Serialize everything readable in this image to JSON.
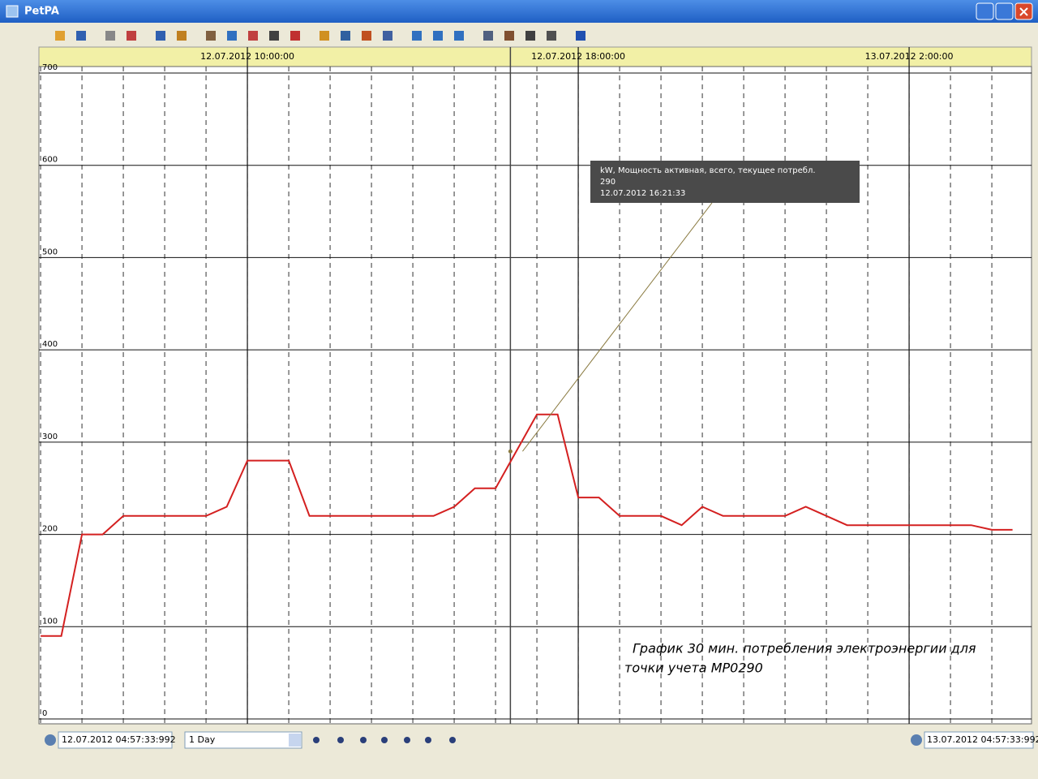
{
  "window": {
    "title": "PetPA",
    "period": "1 Day"
  },
  "chart_data": {
    "type": "line",
    "annotation": [
      "График 30 мин. потребления электроэнергии для",
      "точки учета  МР0290"
    ],
    "x": [
      "12.07.2012 05:00",
      "12.07.2012 05:30",
      "12.07.2012 06:00",
      "12.07.2012 06:30",
      "12.07.2012 07:00",
      "12.07.2012 07:30",
      "12.07.2012 08:00",
      "12.07.2012 08:30",
      "12.07.2012 09:00",
      "12.07.2012 09:30",
      "12.07.2012 10:00",
      "12.07.2012 10:30",
      "12.07.2012 11:00",
      "12.07.2012 11:30",
      "12.07.2012 12:00",
      "12.07.2012 12:30",
      "12.07.2012 13:00",
      "12.07.2012 13:30",
      "12.07.2012 14:00",
      "12.07.2012 14:30",
      "12.07.2012 15:00",
      "12.07.2012 15:30",
      "12.07.2012 16:00",
      "12.07.2012 16:30",
      "12.07.2012 17:00",
      "12.07.2012 17:30",
      "12.07.2012 18:00",
      "12.07.2012 18:30",
      "12.07.2012 19:00",
      "12.07.2012 19:30",
      "12.07.2012 20:00",
      "12.07.2012 20:30",
      "12.07.2012 21:00",
      "12.07.2012 21:30",
      "12.07.2012 22:00",
      "12.07.2012 22:30",
      "12.07.2012 23:00",
      "12.07.2012 23:30",
      "13.07.2012 00:00",
      "13.07.2012 00:30",
      "13.07.2012 01:00",
      "13.07.2012 01:30",
      "13.07.2012 02:00",
      "13.07.2012 02:30",
      "13.07.2012 03:00",
      "13.07.2012 03:30",
      "13.07.2012 04:00",
      "13.07.2012 04:30"
    ],
    "series": [
      {
        "name": "kW, Мощность активная, всего, текущее потребл.",
        "color": "#d42020",
        "values": [
          90,
          90,
          200,
          200,
          220,
          220,
          220,
          220,
          220,
          230,
          280,
          280,
          280,
          220,
          220,
          220,
          220,
          220,
          220,
          220,
          230,
          250,
          250,
          290,
          330,
          330,
          240,
          240,
          220,
          220,
          220,
          210,
          230,
          220,
          220,
          220,
          220,
          230,
          220,
          210,
          210,
          210,
          210,
          210,
          210,
          210,
          205,
          205
        ]
      }
    ],
    "cursor": {
      "value": 290,
      "time": "12.07.2012 16:21:33"
    },
    "xlim": [
      "12.07.2012 04:57:33:992",
      "13.07.2012 04:57:33:992"
    ],
    "xticks": [
      "12.07.2012 10:00:00",
      "12.07.2012 18:00:00",
      "13.07.2012 2:00:00"
    ],
    "minor_xgrid_step_hours": 1,
    "ylim": [
      0,
      700
    ],
    "yticks": [
      0,
      100,
      200,
      300,
      400,
      500,
      600,
      700
    ],
    "grid": true
  }
}
